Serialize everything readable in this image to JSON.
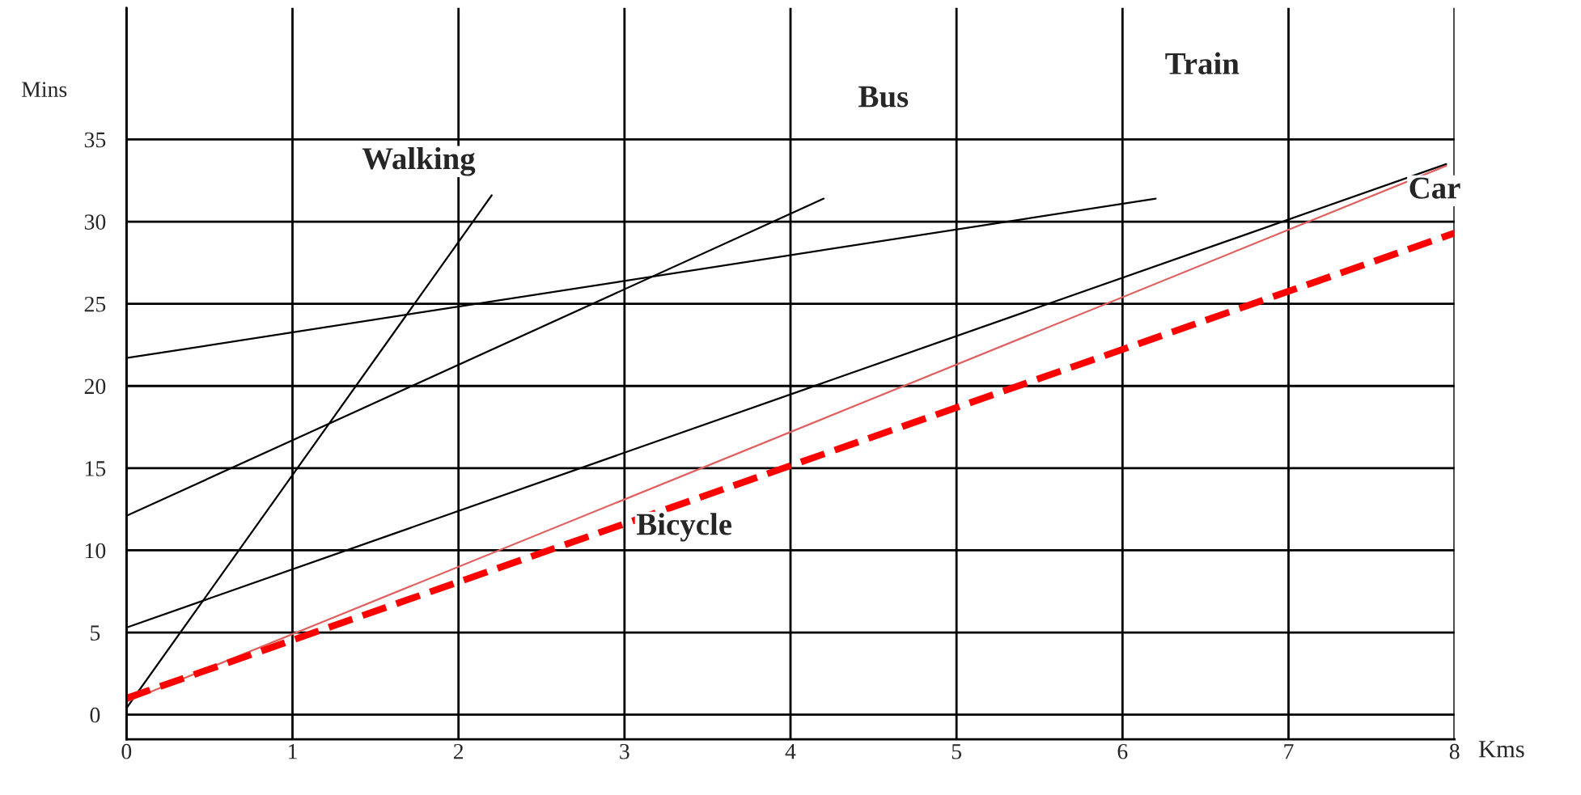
{
  "chart_data": {
    "type": "line",
    "xlabel": "Kms",
    "ylabel": "Mins",
    "xlim": [
      0,
      8
    ],
    "ylim": [
      -1.5,
      43
    ],
    "xticks": [
      0,
      1,
      2,
      3,
      4,
      5,
      6,
      7,
      8
    ],
    "yticks": [
      0,
      5,
      10,
      15,
      20,
      25,
      30,
      35
    ],
    "grid": true,
    "marker": "none",
    "series": [
      {
        "color": "#000000",
        "x": [
          0,
          2.2
        ],
        "values": [
          0.4,
          31.6
        ]
      },
      {
        "color": "#000000",
        "x": [
          0,
          4.2
        ],
        "values": [
          12.1,
          31.4
        ]
      },
      {
        "color": "#000000",
        "x": [
          0,
          6.2
        ],
        "values": [
          21.7,
          31.4
        ]
      },
      {
        "color": "#000000",
        "x": [
          0,
          7.95
        ],
        "values": [
          5.3,
          33.5
        ]
      },
      {
        "color": "#e06060",
        "x": [
          0,
          7.95
        ],
        "values": [
          0.8,
          33.4
        ]
      },
      {
        "color": "#ff0000",
        "line_style": "dashed",
        "x": [
          0,
          8
        ],
        "values": [
          1.0,
          29.3
        ]
      }
    ],
    "annotations": [
      "Walking",
      "Bus",
      "Train",
      "Car",
      "Bicycle"
    ]
  }
}
